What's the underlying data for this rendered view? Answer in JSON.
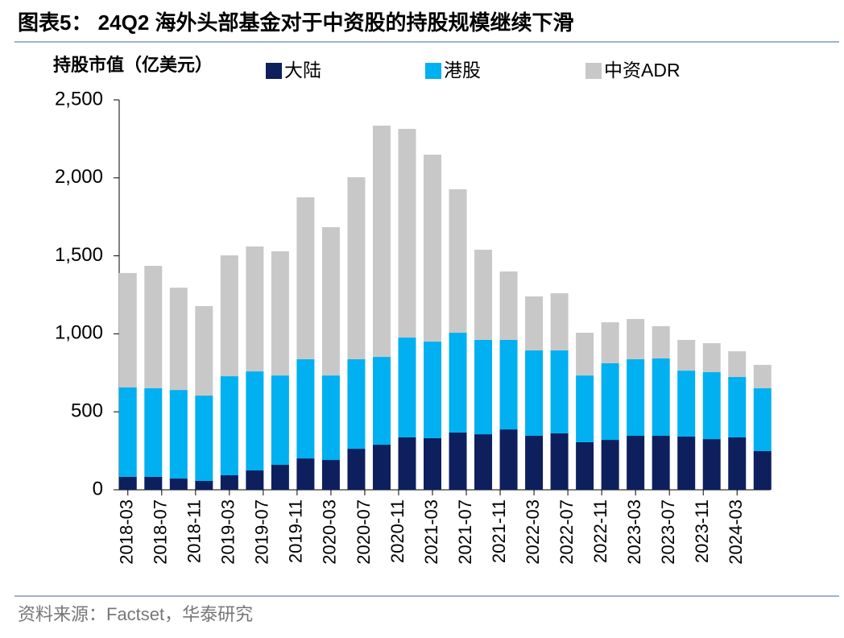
{
  "chart_data": {
    "type": "stacked_bar",
    "title": "图表5： 24Q2 海外头部基金对于中资股的持股规模继续下滑",
    "y_label": "持股市值（亿美元）",
    "source": "资料来源：Factset，华泰研究",
    "categories": [
      null,
      null,
      null,
      null,
      null,
      null,
      null,
      null,
      null,
      null,
      null,
      null,
      null,
      null,
      null,
      null,
      null,
      null,
      null,
      null,
      null,
      null,
      null,
      null,
      null,
      null
    ],
    "xticks": [
      "2018-03",
      "2018-07",
      "2018-11",
      "2019-03",
      "2019-07",
      "2019-11",
      "2020-03",
      "2020-07",
      "2020-11",
      "2021-03",
      "2021-07",
      "2021-11",
      "2022-03",
      "2022-07",
      "2022-11",
      "2023-03",
      "2023-07",
      "2023-11",
      "2024-03"
    ],
    "series": [
      {
        "name": "大陆",
        "color": "#0e1f5e",
        "values": [
          83,
          83,
          72,
          57,
          93,
          124,
          160,
          201,
          191,
          263,
          289,
          336,
          331,
          367,
          356,
          387,
          346,
          362,
          305,
          320,
          346,
          346,
          341,
          325,
          336,
          248
        ]
      },
      {
        "name": "港股",
        "color": "#00b0f0",
        "values": [
          573,
          568,
          568,
          547,
          635,
          635,
          573,
          636,
          542,
          574,
          563,
          640,
          619,
          640,
          605,
          574,
          548,
          532,
          428,
          491,
          491,
          496,
          423,
          429,
          387,
          403
        ]
      },
      {
        "name": "中资ADR",
        "color": "#c8c8c8",
        "values": [
          734,
          785,
          656,
          574,
          775,
          801,
          796,
          1038,
          951,
          1167,
          1483,
          1338,
          1199,
          920,
          578,
          439,
          346,
          366,
          274,
          263,
          258,
          207,
          197,
          186,
          165,
          150
        ]
      }
    ],
    "ylim": [
      0,
      2500
    ],
    "yticks": [
      0,
      500,
      {
        "value": 1000,
        "label": "1,000"
      },
      {
        "value": 1500,
        "label": "1,500"
      },
      {
        "value": 2000,
        "label": "2,000"
      },
      {
        "value": 2500,
        "label": "2,500"
      }
    ]
  }
}
